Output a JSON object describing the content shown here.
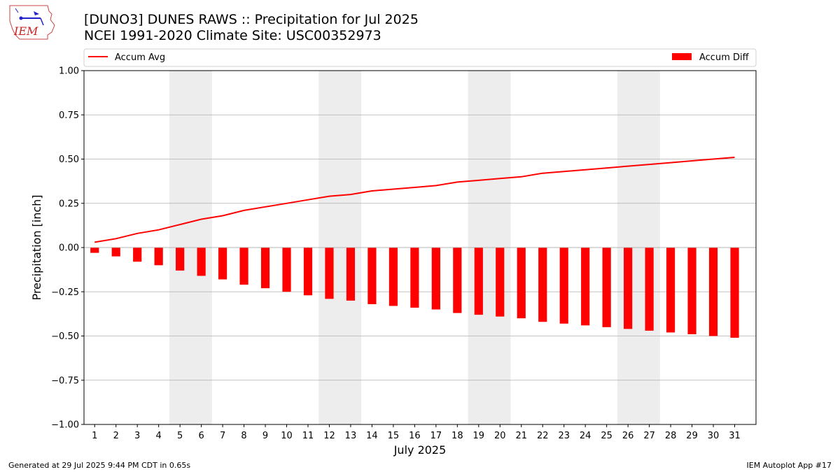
{
  "header": {
    "title_line1": "[DUNO3] DUNES RAWS :: Precipitation for Jul 2025",
    "title_line2": "NCEI 1991-2020 Climate Site: USC00352973",
    "logo_text": "IEM"
  },
  "footer": {
    "left": "Generated at 29 Jul 2025 9:44 PM CDT in 0.65s",
    "right": "IEM Autoplot App #17"
  },
  "colors": {
    "series": "#ff0000",
    "weekend_band": "#ededed",
    "grid": "#b0b0b0"
  },
  "chart_data": {
    "type": "bar",
    "xlabel": "July 2025",
    "ylabel": "Precipitation [inch]",
    "ylim": [
      -1.0,
      1.0
    ],
    "yticks": [
      -1.0,
      -0.75,
      -0.5,
      -0.25,
      0.0,
      0.25,
      0.5,
      0.75,
      1.0
    ],
    "ytick_labels": [
      "−1.00",
      "−0.75",
      "−0.50",
      "−0.25",
      "0.00",
      "0.25",
      "0.50",
      "0.75",
      "1.00"
    ],
    "grid": "horizontal",
    "legend": {
      "placement": "top",
      "entries": [
        "Accum Avg",
        "Accum Diff"
      ]
    },
    "categories": [
      "1",
      "2",
      "3",
      "4",
      "5",
      "6",
      "7",
      "8",
      "9",
      "10",
      "11",
      "12",
      "13",
      "14",
      "15",
      "16",
      "17",
      "18",
      "19",
      "20",
      "21",
      "22",
      "23",
      "24",
      "25",
      "26",
      "27",
      "28",
      "29",
      "30",
      "31"
    ],
    "weekend_days": [
      [
        5,
        6
      ],
      [
        12,
        13
      ],
      [
        19,
        20
      ],
      [
        26,
        27
      ]
    ],
    "series": [
      {
        "name": "Accum Avg",
        "type": "line",
        "values": [
          0.03,
          0.05,
          0.08,
          0.1,
          0.13,
          0.16,
          0.18,
          0.21,
          0.23,
          0.25,
          0.27,
          0.29,
          0.3,
          0.32,
          0.33,
          0.34,
          0.35,
          0.37,
          0.38,
          0.39,
          0.4,
          0.42,
          0.43,
          0.44,
          0.45,
          0.46,
          0.47,
          0.48,
          0.49,
          0.5,
          0.51
        ]
      },
      {
        "name": "Accum Diff",
        "type": "bar",
        "values": [
          -0.03,
          -0.05,
          -0.08,
          -0.1,
          -0.13,
          -0.16,
          -0.18,
          -0.21,
          -0.23,
          -0.25,
          -0.27,
          -0.29,
          -0.3,
          -0.32,
          -0.33,
          -0.34,
          -0.35,
          -0.37,
          -0.38,
          -0.39,
          -0.4,
          -0.42,
          -0.43,
          -0.44,
          -0.45,
          -0.46,
          -0.47,
          -0.48,
          -0.49,
          -0.5,
          -0.51
        ]
      }
    ]
  }
}
